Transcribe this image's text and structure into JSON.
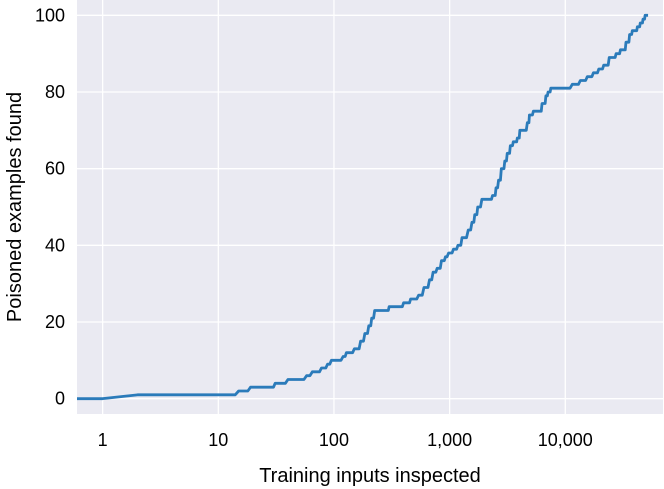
{
  "chart_data": {
    "type": "line",
    "xlabel": "Training inputs inspected",
    "ylabel": "Poisoned examples found",
    "x_scale": "log",
    "xlim": [
      0.6,
      70000
    ],
    "ylim": [
      -4,
      104
    ],
    "x_ticks": [
      {
        "value": 1,
        "label": "1"
      },
      {
        "value": 10,
        "label": "10"
      },
      {
        "value": 100,
        "label": "100"
      },
      {
        "value": 1000,
        "label": "1,000"
      },
      {
        "value": 10000,
        "label": "10,000"
      }
    ],
    "y_ticks": [
      {
        "value": 0,
        "label": "0"
      },
      {
        "value": 20,
        "label": "20"
      },
      {
        "value": 40,
        "label": "40"
      },
      {
        "value": 60,
        "label": "60"
      },
      {
        "value": 80,
        "label": "80"
      },
      {
        "value": 100,
        "label": "100"
      }
    ],
    "grid": true,
    "background_color": "#eaeaf2",
    "grid_color": "#ffffff",
    "series": [
      {
        "color": "#2b7bba",
        "points": [
          [
            0.6,
            0
          ],
          [
            1,
            0
          ],
          [
            2,
            1
          ],
          [
            14,
            1
          ],
          [
            15,
            2
          ],
          [
            18,
            2
          ],
          [
            19,
            3
          ],
          [
            30,
            3
          ],
          [
            31,
            4
          ],
          [
            38,
            4
          ],
          [
            40,
            5
          ],
          [
            55,
            5
          ],
          [
            58,
            6
          ],
          [
            62,
            6
          ],
          [
            65,
            7
          ],
          [
            75,
            7
          ],
          [
            78,
            8
          ],
          [
            85,
            8
          ],
          [
            88,
            9
          ],
          [
            92,
            9
          ],
          [
            95,
            10
          ],
          [
            115,
            10
          ],
          [
            120,
            11
          ],
          [
            125,
            11
          ],
          [
            128,
            12
          ],
          [
            145,
            12
          ],
          [
            150,
            13
          ],
          [
            165,
            13
          ],
          [
            170,
            15
          ],
          [
            180,
            15
          ],
          [
            185,
            17
          ],
          [
            195,
            17
          ],
          [
            200,
            19
          ],
          [
            208,
            19
          ],
          [
            212,
            21
          ],
          [
            220,
            21
          ],
          [
            225,
            23
          ],
          [
            295,
            23
          ],
          [
            300,
            24
          ],
          [
            390,
            24
          ],
          [
            400,
            25
          ],
          [
            450,
            25
          ],
          [
            460,
            26
          ],
          [
            520,
            26
          ],
          [
            540,
            27
          ],
          [
            580,
            27
          ],
          [
            600,
            29
          ],
          [
            650,
            29
          ],
          [
            670,
            31
          ],
          [
            700,
            31
          ],
          [
            720,
            33
          ],
          [
            760,
            33
          ],
          [
            780,
            34
          ],
          [
            830,
            34
          ],
          [
            850,
            36
          ],
          [
            900,
            36
          ],
          [
            920,
            37
          ],
          [
            950,
            37
          ],
          [
            980,
            38
          ],
          [
            1050,
            38
          ],
          [
            1080,
            39
          ],
          [
            1150,
            39
          ],
          [
            1180,
            40
          ],
          [
            1250,
            40
          ],
          [
            1280,
            42
          ],
          [
            1400,
            42
          ],
          [
            1450,
            44
          ],
          [
            1520,
            44
          ],
          [
            1560,
            46
          ],
          [
            1620,
            46
          ],
          [
            1650,
            48
          ],
          [
            1720,
            48
          ],
          [
            1750,
            50
          ],
          [
            1850,
            50
          ],
          [
            1900,
            52
          ],
          [
            2300,
            52
          ],
          [
            2350,
            53
          ],
          [
            2480,
            53
          ],
          [
            2520,
            55
          ],
          [
            2600,
            55
          ],
          [
            2650,
            57
          ],
          [
            2750,
            57
          ],
          [
            2800,
            60
          ],
          [
            2950,
            60
          ],
          [
            3000,
            62
          ],
          [
            3100,
            62
          ],
          [
            3150,
            64
          ],
          [
            3300,
            64
          ],
          [
            3350,
            66
          ],
          [
            3500,
            66
          ],
          [
            3550,
            67
          ],
          [
            3800,
            67
          ],
          [
            3850,
            68
          ],
          [
            4000,
            68
          ],
          [
            4050,
            70
          ],
          [
            4600,
            70
          ],
          [
            4700,
            72
          ],
          [
            4850,
            72
          ],
          [
            4900,
            74
          ],
          [
            5200,
            74
          ],
          [
            5300,
            75
          ],
          [
            6200,
            75
          ],
          [
            6300,
            77
          ],
          [
            6700,
            77
          ],
          [
            6800,
            79
          ],
          [
            7000,
            79
          ],
          [
            7100,
            80
          ],
          [
            7400,
            80
          ],
          [
            7500,
            81
          ],
          [
            11000,
            81
          ],
          [
            11500,
            82
          ],
          [
            13000,
            82
          ],
          [
            13500,
            83
          ],
          [
            15000,
            83
          ],
          [
            15500,
            84
          ],
          [
            17000,
            84
          ],
          [
            17500,
            85
          ],
          [
            19000,
            85
          ],
          [
            19500,
            86
          ],
          [
            21000,
            86
          ],
          [
            21500,
            87
          ],
          [
            23500,
            87
          ],
          [
            24000,
            89
          ],
          [
            27000,
            89
          ],
          [
            27500,
            90
          ],
          [
            29500,
            90
          ],
          [
            30000,
            91
          ],
          [
            33000,
            91
          ],
          [
            33500,
            93
          ],
          [
            35500,
            93
          ],
          [
            36000,
            95
          ],
          [
            37500,
            95
          ],
          [
            38000,
            96
          ],
          [
            41500,
            96
          ],
          [
            42000,
            97
          ],
          [
            44000,
            97
          ],
          [
            44500,
            98
          ],
          [
            46500,
            98
          ],
          [
            47000,
            99
          ],
          [
            48500,
            99
          ],
          [
            49000,
            100
          ],
          [
            52000,
            100
          ]
        ]
      }
    ]
  }
}
